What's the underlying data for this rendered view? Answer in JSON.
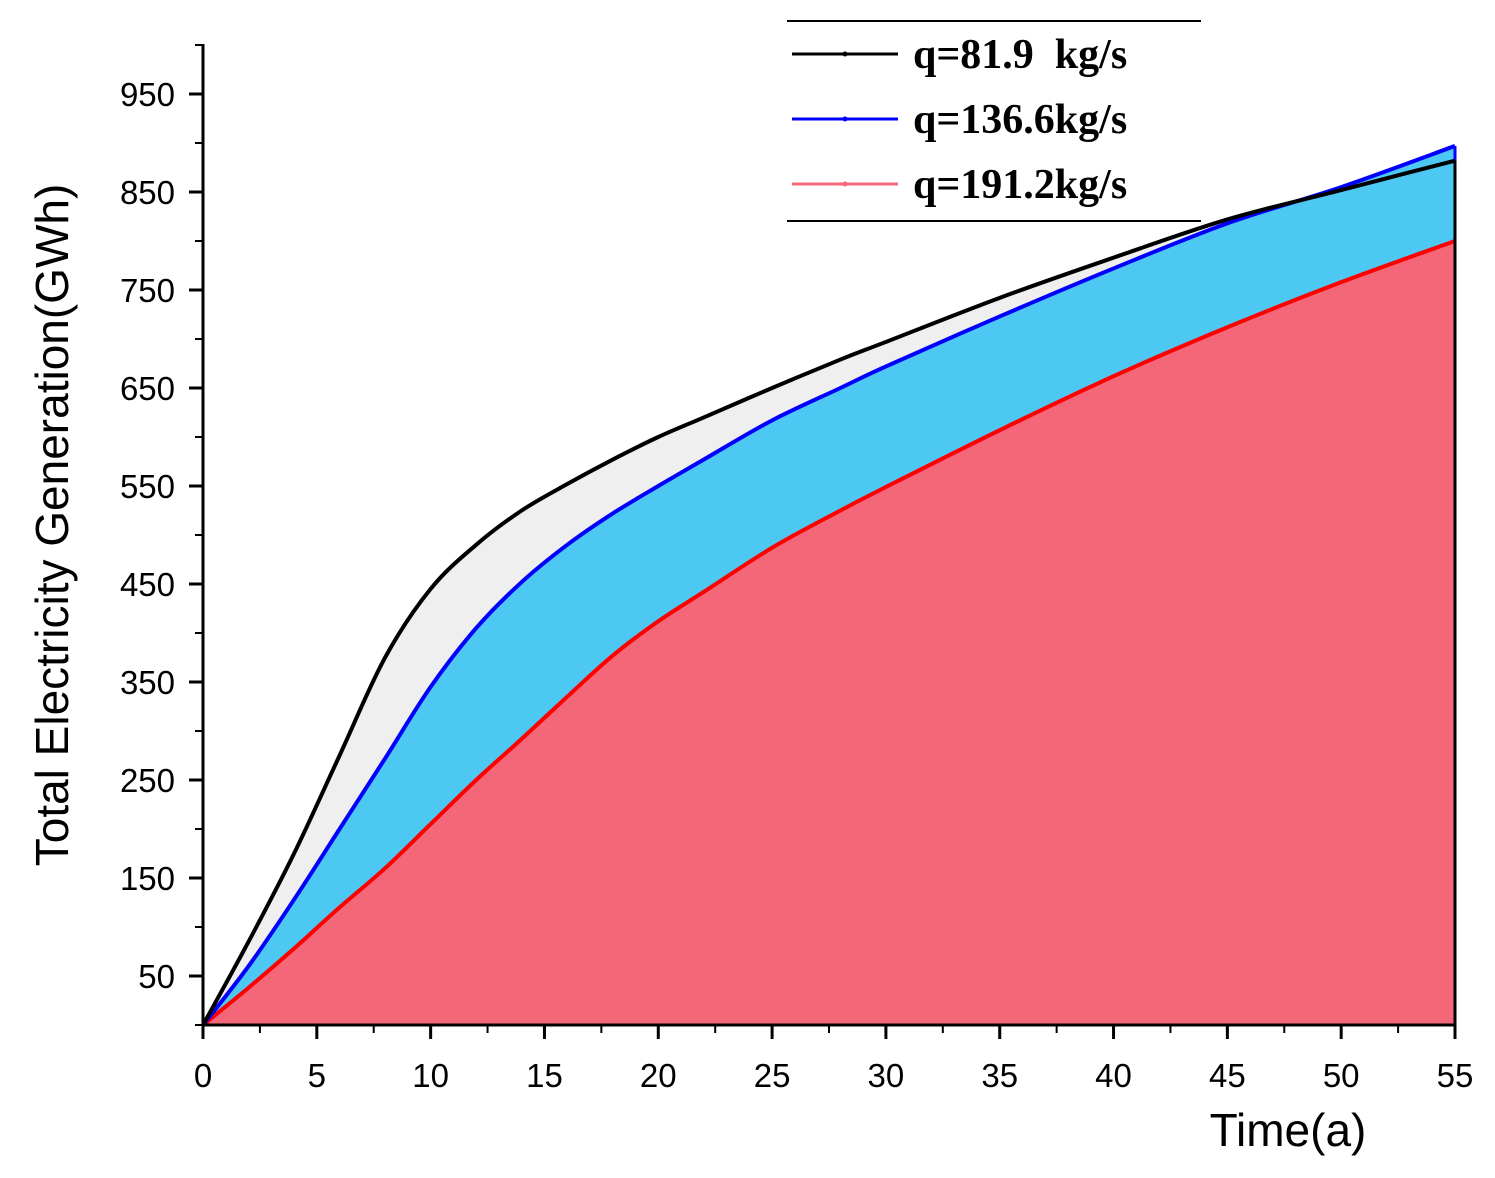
{
  "chart_data": {
    "type": "area",
    "title": "",
    "xlabel": "Time(a)",
    "ylabel": "Total Electricity Generation(GWh)",
    "xlim": [
      0,
      55
    ],
    "ylim": [
      0,
      1000
    ],
    "x_ticks": [
      0,
      5,
      10,
      15,
      20,
      25,
      30,
      35,
      40,
      45,
      50,
      55
    ],
    "y_ticks": [
      50,
      150,
      250,
      350,
      450,
      550,
      650,
      750,
      850,
      950
    ],
    "grid": false,
    "legend_position": "top-right",
    "x": [
      0,
      2,
      4,
      6,
      8,
      10,
      12,
      14,
      16,
      18,
      20,
      22,
      25,
      28,
      30,
      35,
      40,
      45,
      50,
      55
    ],
    "series": [
      {
        "name": "q=81.9  kg/s",
        "line_color": "#000000",
        "fill_color": "#efefef",
        "values": [
          0,
          85,
          175,
          275,
          375,
          445,
          490,
          525,
          552,
          577,
          600,
          620,
          650,
          679,
          697,
          742,
          783,
          822,
          852,
          882
        ]
      },
      {
        "name": "q=136.6kg/s",
        "line_color": "#0000ff",
        "fill_color": "#4dc8f2",
        "values": [
          0,
          60,
          128,
          200,
          272,
          345,
          405,
          452,
          490,
          522,
          550,
          577,
          617,
          650,
          672,
          723,
          772,
          818,
          855,
          897
        ]
      },
      {
        "name": "q=191.2kg/s",
        "line_color": "#ff0000",
        "fill_color": "#f46778",
        "values": [
          0,
          38,
          78,
          120,
          160,
          205,
          250,
          292,
          335,
          377,
          412,
          442,
          487,
          525,
          549,
          607,
          662,
          712,
          758,
          800
        ]
      }
    ]
  }
}
